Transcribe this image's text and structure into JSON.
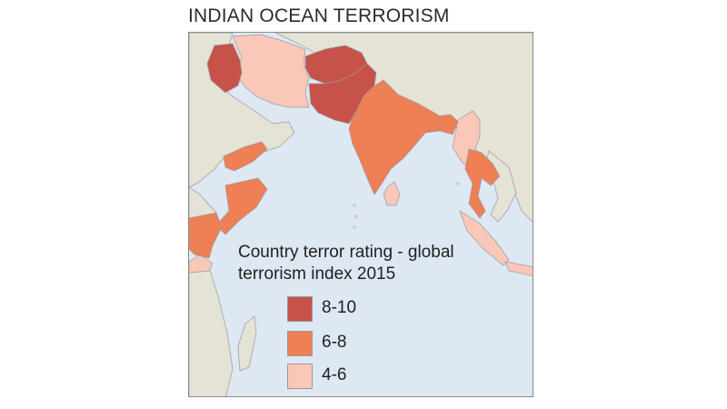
{
  "title": "INDIAN OCEAN TERRORISM",
  "legend": {
    "title_line1": "Country terror rating - global",
    "title_line2": "terrorism index 2015",
    "items": [
      {
        "label": "8-10",
        "color": "#c6524a"
      },
      {
        "label": "6-8",
        "color": "#ef7f55"
      },
      {
        "label": "4-6",
        "color": "#f9c8b9"
      }
    ]
  },
  "colors": {
    "ocean": "#dde8f3",
    "land": "#e4e3d6",
    "border": "#9a9a9a"
  },
  "countries": {
    "Iraq": "8-10",
    "Afghanistan": "8-10",
    "Pakistan": "8-10",
    "India": "6-8",
    "Yemen": "6-8",
    "Somalia": "6-8",
    "Kenya": "6-8",
    "Thailand": "6-8",
    "Bangladesh": "6-8",
    "Iran": "4-6",
    "Myanmar": "4-6",
    "Sri Lanka": "4-6",
    "Indonesia": "4-6",
    "Tanzania": "4-6"
  }
}
